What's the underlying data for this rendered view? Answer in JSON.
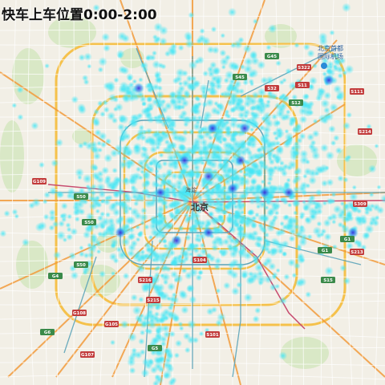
{
  "title": "快车上车位置0:00-2:00",
  "map": {
    "center_label": "北京",
    "airport_label_line1": "北京首都",
    "airport_label_line2": "国际机场",
    "haidian_label": "海淀"
  },
  "colors": {
    "land": "#f2efe6",
    "park": "#cfe5b8",
    "ring_road": "#f5c14b",
    "expressway": "#f29a3a",
    "subway": "#5ba3b8",
    "rail": "#c74b6f",
    "heat_low": "#43e6f5",
    "heat_mid": "#2e8ef0",
    "heat_high": "#3a2ad8"
  },
  "route_shields": [
    {
      "id": "S11",
      "color": "#c23b3b"
    },
    {
      "id": "S12",
      "color": "#3a8a4a"
    },
    {
      "id": "S32",
      "color": "#c23b3b"
    },
    {
      "id": "S50",
      "color": "#3a8a4a"
    },
    {
      "id": "S50",
      "color": "#3a8a4a"
    },
    {
      "id": "S50",
      "color": "#3a8a4a"
    },
    {
      "id": "S15",
      "color": "#3a8a4a"
    },
    {
      "id": "G1",
      "color": "#3a8a4a"
    },
    {
      "id": "G1",
      "color": "#3a8a4a"
    },
    {
      "id": "G4",
      "color": "#3a8a4a"
    },
    {
      "id": "G6",
      "color": "#3a8a4a"
    },
    {
      "id": "G5",
      "color": "#3a8a4a"
    },
    {
      "id": "G45",
      "color": "#3a8a4a"
    },
    {
      "id": "S45",
      "color": "#3a8a4a"
    },
    {
      "id": "S101",
      "color": "#c23b3b"
    },
    {
      "id": "S215",
      "color": "#c23b3b"
    },
    {
      "id": "S216",
      "color": "#c23b3b"
    },
    {
      "id": "G109",
      "color": "#c23b3b"
    },
    {
      "id": "G108",
      "color": "#c23b3b"
    },
    {
      "id": "G107",
      "color": "#c23b3b"
    },
    {
      "id": "G105",
      "color": "#c23b3b"
    },
    {
      "id": "S214",
      "color": "#c23b3b"
    },
    {
      "id": "S309",
      "color": "#c23b3b"
    },
    {
      "id": "S213",
      "color": "#c23b3b"
    },
    {
      "id": "S322",
      "color": "#c23b3b"
    },
    {
      "id": "S111",
      "color": "#c23b3b"
    },
    {
      "id": "S104",
      "color": "#c23b3b"
    }
  ]
}
